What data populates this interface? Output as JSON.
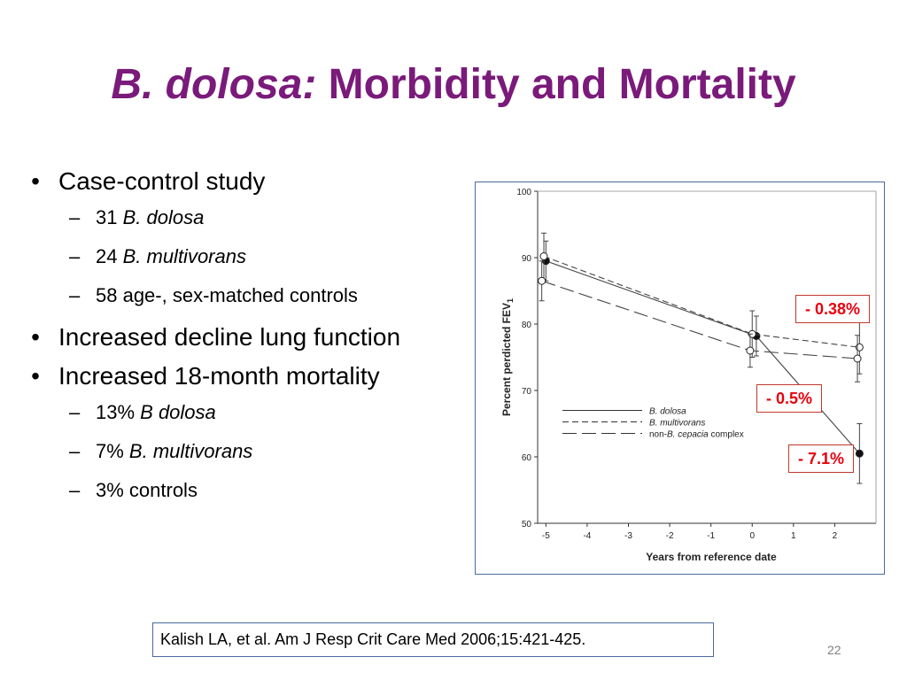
{
  "slide": {
    "title_italic": "B. dolosa:",
    "title_rest": " Morbidity and Mortality",
    "page_number": "22"
  },
  "bullets": [
    {
      "text": "Case-control study",
      "sub": [
        {
          "pre": "31 ",
          "italic": "B. dolosa",
          "post": ""
        },
        {
          "pre": "24 ",
          "italic": "B. multivorans",
          "post": ""
        },
        {
          "pre": "58 age-, sex-matched controls",
          "italic": "",
          "post": ""
        }
      ]
    },
    {
      "text": "Increased decline lung function",
      "sub": []
    },
    {
      "text": "Increased 18-month mortality",
      "sub": [
        {
          "pre": "13% ",
          "italic": "B dolosa",
          "post": ""
        },
        {
          "pre": "7% ",
          "italic": "B. multivorans",
          "post": ""
        },
        {
          "pre": "3% controls",
          "italic": "",
          "post": ""
        }
      ]
    }
  ],
  "reference": "Kalish LA, et al. Am J Resp Crit Care Med 2006;15:421-425.",
  "callouts": {
    "multivorans_slope": "- 0.38%",
    "dolosa_slope": "- 0.5%",
    "dolosa_late_slope": "- 7.1%"
  },
  "colors": {
    "title": "#7a1a7a",
    "callout_text": "#e8000d",
    "callout_border": "#c0392b",
    "frame": "#4a6a9e"
  },
  "chart_data": {
    "type": "line",
    "xlabel": "Years from reference date",
    "ylabel": "Percent perdicted FEV",
    "ylabel_subscript": "1",
    "xlim": [
      -5.2,
      3
    ],
    "ylim": [
      50,
      100
    ],
    "xticks": [
      -5,
      -4,
      -3,
      -2,
      -1,
      0,
      1,
      2
    ],
    "yticks": [
      50,
      60,
      70,
      80,
      90,
      100
    ],
    "grid": false,
    "legend_position": "bottom-left",
    "series": [
      {
        "name": "B. dolosa",
        "name_italic": "B. dolosa",
        "name_suffix": "",
        "line_style": "solid",
        "marker": "filled",
        "x": [
          -5,
          0.1,
          2.6
        ],
        "y": [
          89.5,
          78.2,
          60.5
        ],
        "err": [
          3.0,
          3.0,
          4.5
        ]
      },
      {
        "name": "B. multivorans",
        "name_italic": "B. multivorans",
        "name_suffix": "",
        "line_style": "dashed",
        "marker": "open",
        "x": [
          -5.05,
          0,
          2.6
        ],
        "y": [
          90.2,
          78.5,
          76.5
        ],
        "err": [
          3.5,
          3.5,
          4.0
        ]
      },
      {
        "name": "non-B. cepacia complex",
        "name_prefix": "non-",
        "name_italic": "B. cepacia",
        "name_suffix": " complex",
        "line_style": "longdash",
        "marker": "open",
        "x": [
          -5.1,
          -0.05,
          2.55
        ],
        "y": [
          86.5,
          76.0,
          74.8
        ],
        "err": [
          3.0,
          2.5,
          3.5
        ]
      }
    ]
  }
}
